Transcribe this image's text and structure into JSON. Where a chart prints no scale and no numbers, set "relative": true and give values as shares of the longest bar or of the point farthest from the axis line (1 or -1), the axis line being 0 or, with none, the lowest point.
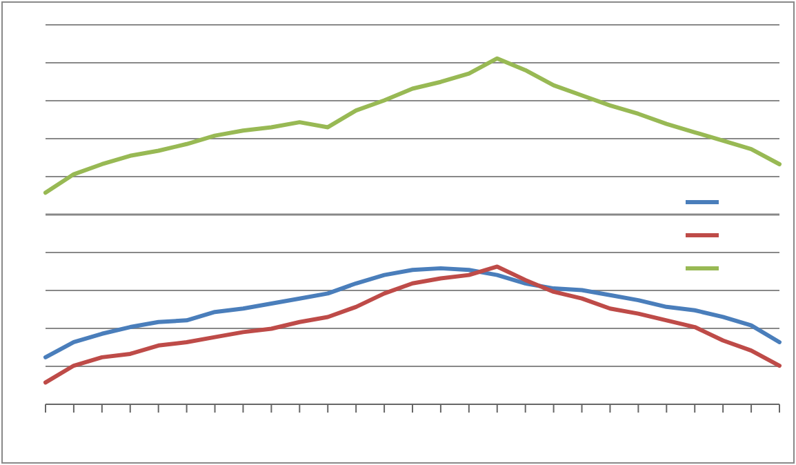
{
  "chart_data": {
    "type": "line",
    "relative": true,
    "categories": [
      null,
      null,
      null,
      null,
      null,
      null,
      null,
      null,
      null,
      null,
      null,
      null,
      null,
      null,
      null,
      null,
      null,
      null,
      null,
      null,
      null,
      null,
      null,
      null,
      null,
      null,
      null
    ],
    "series": [
      {
        "color": "#4a7ebb",
        "values": [
          -0.85,
          -0.76,
          -0.71,
          -0.67,
          -0.64,
          -0.63,
          -0.58,
          -0.56,
          -0.53,
          -0.5,
          -0.47,
          -0.41,
          -0.36,
          -0.33,
          -0.32,
          -0.33,
          -0.36,
          -0.41,
          -0.44,
          -0.45,
          -0.48,
          -0.51,
          -0.55,
          -0.57,
          -0.61,
          -0.66,
          -0.76
        ]
      },
      {
        "color": "#be4b48",
        "values": [
          -1,
          -0.9,
          -0.85,
          -0.83,
          -0.78,
          -0.76,
          -0.73,
          -0.7,
          -0.68,
          -0.64,
          -0.61,
          -0.55,
          -0.47,
          -0.41,
          -0.38,
          -0.36,
          -0.31,
          -0.39,
          -0.46,
          -0.5,
          -0.56,
          -0.59,
          -0.63,
          -0.67,
          -0.75,
          -0.81,
          -0.9
        ]
      },
      {
        "color": "#98b954",
        "values": [
          0.13,
          0.24,
          0.3,
          0.35,
          0.38,
          0.42,
          0.47,
          0.5,
          0.52,
          0.55,
          0.52,
          0.62,
          0.68,
          0.75,
          0.79,
          0.84,
          0.93,
          0.86,
          0.77,
          0.71,
          0.65,
          0.6,
          0.54,
          0.49,
          0.44,
          0.39,
          0.3
        ]
      }
    ],
    "grid": "y",
    "marker": "none",
    "line_style": "solid"
  }
}
